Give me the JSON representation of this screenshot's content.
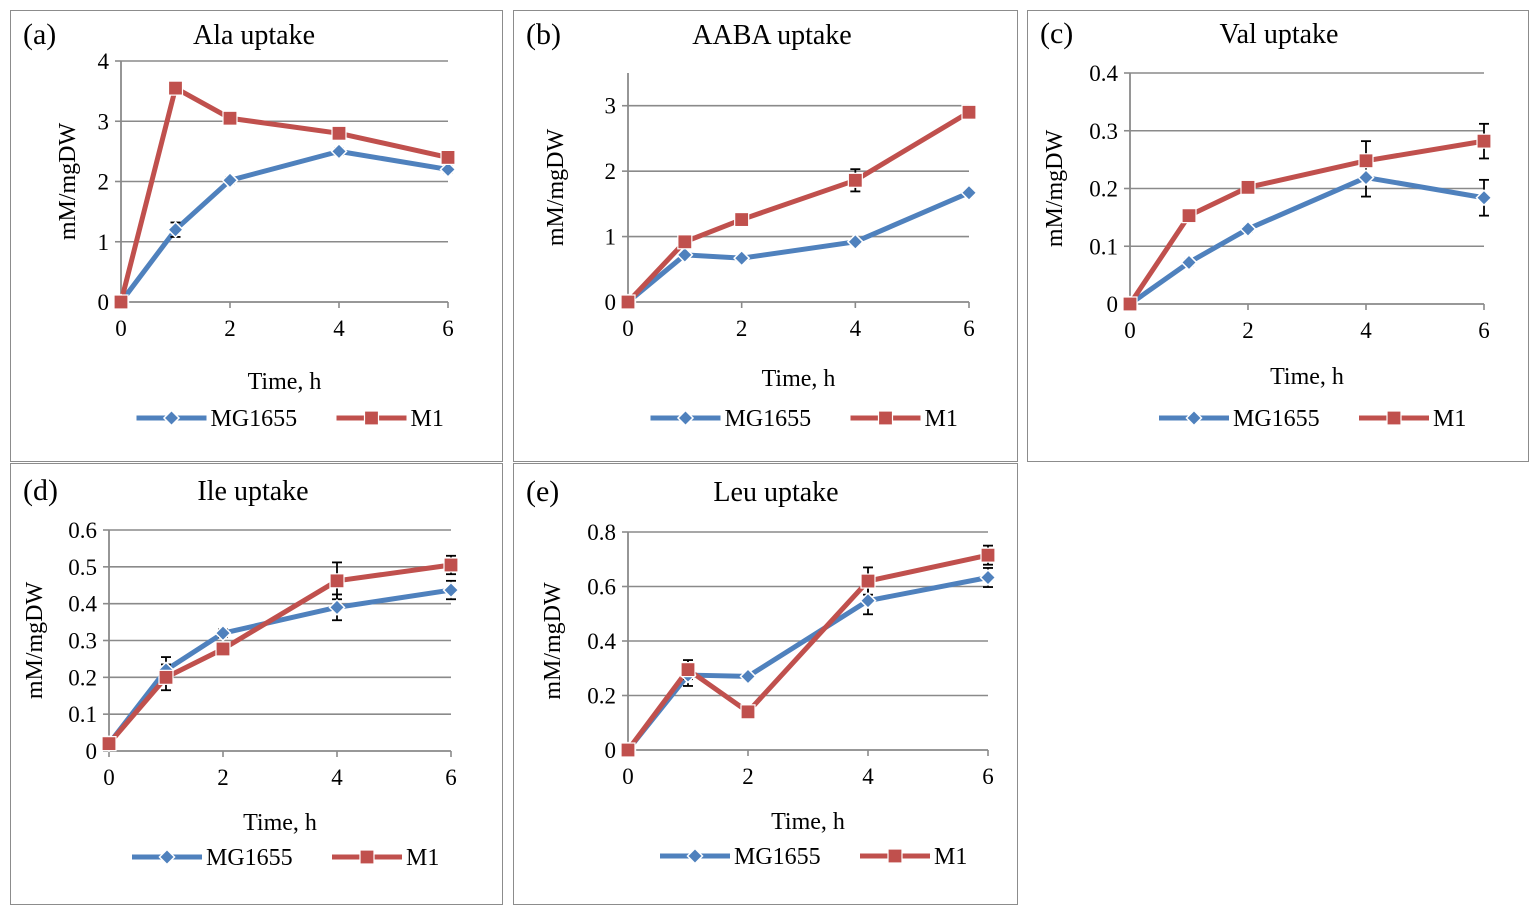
{
  "chart_data": [
    {
      "type": "line",
      "panel_label": "(a)",
      "title": "Ala uptake",
      "xlabel": "Time, h",
      "ylabel": "mM/mgDW",
      "x": [
        0,
        1,
        2,
        4,
        6
      ],
      "xticks": [
        0,
        2,
        4,
        6
      ],
      "xlim": [
        0,
        6
      ],
      "ylim": [
        0,
        4
      ],
      "yticks": [
        0,
        1,
        2,
        3,
        4
      ],
      "ytick_labels": [
        "0",
        "1",
        "2",
        "3",
        "4"
      ],
      "series": [
        {
          "name": "MG1655",
          "color": "#4f81bd",
          "marker": "diamond",
          "values": [
            0,
            1.2,
            2.02,
            2.5,
            2.2
          ],
          "errors": [
            0,
            0.12,
            0.05,
            0.05,
            0.05
          ]
        },
        {
          "name": "M1",
          "color": "#c0504d",
          "marker": "square",
          "values": [
            0,
            3.55,
            3.05,
            2.8,
            2.4
          ],
          "errors": [
            0,
            0.1,
            0.05,
            0.05,
            0.05
          ]
        }
      ]
    },
    {
      "type": "line",
      "panel_label": "(b)",
      "title": "AABA uptake",
      "xlabel": "Time, h",
      "ylabel": "mM/mgDW",
      "x": [
        0,
        1,
        2,
        4,
        6
      ],
      "xticks": [
        0,
        2,
        4,
        6
      ],
      "xlim": [
        0,
        6
      ],
      "ylim": [
        0,
        3.5
      ],
      "yticks": [
        0,
        1,
        2,
        3
      ],
      "ytick_labels": [
        "0",
        "1",
        "2",
        "3"
      ],
      "series": [
        {
          "name": "MG1655",
          "color": "#4f81bd",
          "marker": "diamond",
          "values": [
            0,
            0.72,
            0.67,
            0.92,
            1.67
          ],
          "errors": [
            0,
            0.04,
            0.04,
            0.04,
            0.04
          ]
        },
        {
          "name": "M1",
          "color": "#c0504d",
          "marker": "square",
          "values": [
            0,
            0.92,
            1.26,
            1.86,
            2.9
          ],
          "errors": [
            0,
            0.05,
            0.05,
            0.17,
            0.05
          ]
        }
      ]
    },
    {
      "type": "line",
      "panel_label": "(c)",
      "title": "Val uptake",
      "xlabel": "Time, h",
      "ylabel": "mM/mgDW",
      "x": [
        0,
        1,
        2,
        4,
        6
      ],
      "xticks": [
        0,
        2,
        4,
        6
      ],
      "xlim": [
        0,
        6
      ],
      "ylim": [
        0,
        0.4
      ],
      "yticks": [
        0,
        0.1,
        0.2,
        0.3,
        0.4
      ],
      "ytick_labels": [
        "0",
        "0.1",
        "0.2",
        "0.3",
        "0.4"
      ],
      "series": [
        {
          "name": "MG1655",
          "color": "#4f81bd",
          "marker": "diamond",
          "values": [
            0,
            0.072,
            0.13,
            0.219,
            0.184
          ],
          "errors": [
            0,
            0.005,
            0.005,
            0.033,
            0.031
          ]
        },
        {
          "name": "M1",
          "color": "#c0504d",
          "marker": "square",
          "values": [
            0,
            0.153,
            0.202,
            0.248,
            0.282
          ],
          "errors": [
            0,
            0.005,
            0.005,
            0.034,
            0.03
          ]
        }
      ]
    },
    {
      "type": "line",
      "panel_label": "(d)",
      "title": "Ile uptake",
      "xlabel": "Time, h",
      "ylabel": "mM/mgDW",
      "x": [
        0,
        1,
        2,
        4,
        6
      ],
      "xticks": [
        0,
        2,
        4,
        6
      ],
      "xlim": [
        0,
        6
      ],
      "ylim": [
        0,
        0.6
      ],
      "yticks": [
        0,
        0.1,
        0.2,
        0.3,
        0.4,
        0.5,
        0.6
      ],
      "ytick_labels": [
        "0",
        "0.1",
        "0.2",
        "0.3",
        "0.4",
        "0.5",
        "0.6"
      ],
      "series": [
        {
          "name": "MG1655",
          "color": "#4f81bd",
          "marker": "diamond",
          "values": [
            0.02,
            0.22,
            0.32,
            0.39,
            0.437
          ],
          "errors": [
            0,
            0.035,
            0.01,
            0.035,
            0.025
          ]
        },
        {
          "name": "M1",
          "color": "#c0504d",
          "marker": "square",
          "values": [
            0.02,
            0.2,
            0.277,
            0.462,
            0.505
          ],
          "errors": [
            0,
            0.035,
            0.01,
            0.05,
            0.025
          ]
        }
      ]
    },
    {
      "type": "line",
      "panel_label": "(e)",
      "title": "Leu uptake",
      "xlabel": "Time, h",
      "ylabel": "mM/mgDW",
      "x": [
        0,
        1,
        2,
        4,
        6
      ],
      "xticks": [
        0,
        2,
        4,
        6
      ],
      "xlim": [
        0,
        6
      ],
      "ylim": [
        0,
        0.8
      ],
      "yticks": [
        0,
        0.2,
        0.4,
        0.6,
        0.8
      ],
      "ytick_labels": [
        "0",
        "0.2",
        "0.4",
        "0.6",
        "0.8"
      ],
      "series": [
        {
          "name": "MG1655",
          "color": "#4f81bd",
          "marker": "diamond",
          "values": [
            0,
            0.275,
            0.27,
            0.548,
            0.633
          ],
          "errors": [
            0,
            0.04,
            0.01,
            0.05,
            0.035
          ]
        },
        {
          "name": "M1",
          "color": "#c0504d",
          "marker": "square",
          "values": [
            0,
            0.295,
            0.14,
            0.62,
            0.715
          ],
          "errors": [
            0,
            0.035,
            0.01,
            0.05,
            0.035
          ]
        }
      ]
    }
  ]
}
